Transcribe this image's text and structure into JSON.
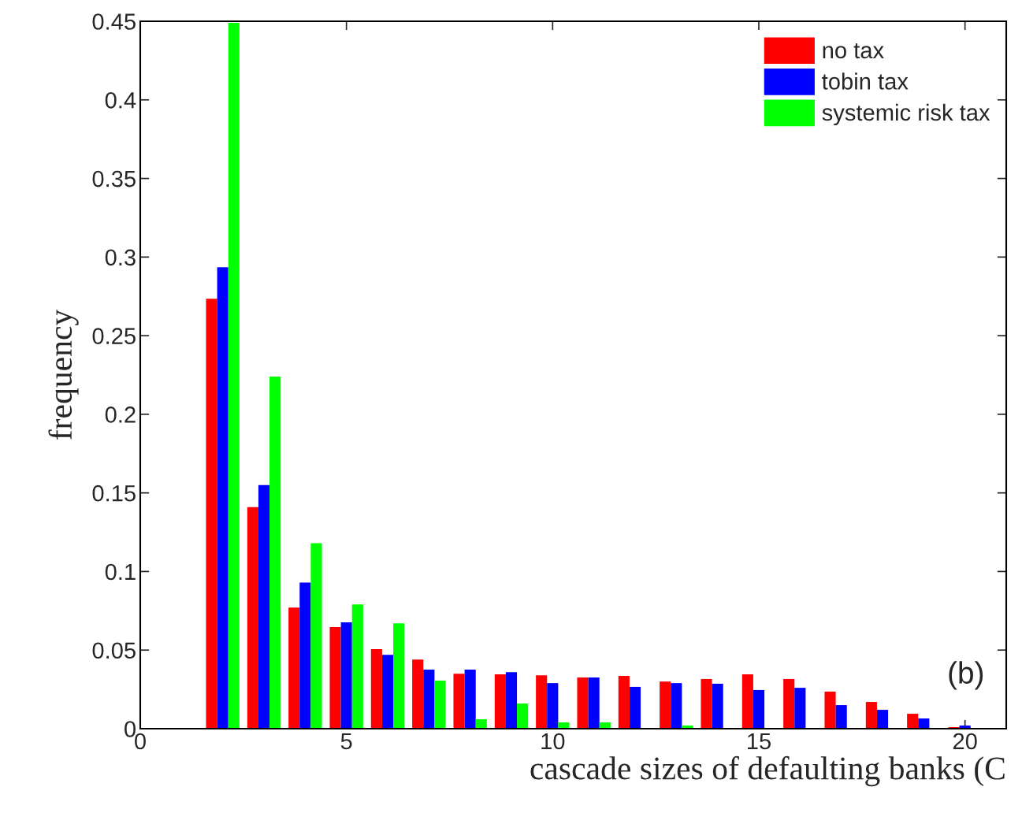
{
  "chart_data": {
    "type": "bar",
    "x": [
      1,
      2,
      3,
      4,
      5,
      6,
      7,
      8,
      9,
      10,
      11,
      12,
      13,
      14,
      15,
      16,
      17,
      18,
      19,
      20
    ],
    "series": [
      {
        "name": "no tax",
        "color": "#ff0000",
        "values": [
          0,
          0.2735,
          0.141,
          0.077,
          0.0646,
          0.0506,
          0.044,
          0.035,
          0.0346,
          0.034,
          0.0326,
          0.0336,
          0.03,
          0.0316,
          0.0346,
          0.0316,
          0.0236,
          0.017,
          0.0095,
          0.001
        ]
      },
      {
        "name": "tobin tax",
        "color": "#0000ff",
        "values": [
          0,
          0.2935,
          0.155,
          0.093,
          0.0676,
          0.047,
          0.0376,
          0.0376,
          0.036,
          0.029,
          0.0326,
          0.0266,
          0.029,
          0.0286,
          0.0246,
          0.026,
          0.015,
          0.012,
          0.0065,
          0.002
        ]
      },
      {
        "name": "systemic risk tax",
        "color": "#00ff00",
        "values": [
          0,
          0.449,
          0.224,
          0.118,
          0.079,
          0.067,
          0.0306,
          0.006,
          0.016,
          0.004,
          0.004,
          0,
          0.002,
          0,
          0,
          0,
          0,
          0,
          0,
          0
        ]
      }
    ],
    "xlabel": "cascade sizes of defaulting banks (C",
    "ylabel": "frequency",
    "annotations": [
      "(b)"
    ],
    "xlim": [
      0,
      21
    ],
    "xticks": [
      0,
      5,
      10,
      15,
      20
    ],
    "ylim": [
      0,
      0.45
    ],
    "yticks": [
      0,
      0.05,
      0.1,
      0.15,
      0.2,
      0.25,
      0.3,
      0.35,
      0.4,
      0.45
    ],
    "legend": "top right",
    "grid": false
  }
}
